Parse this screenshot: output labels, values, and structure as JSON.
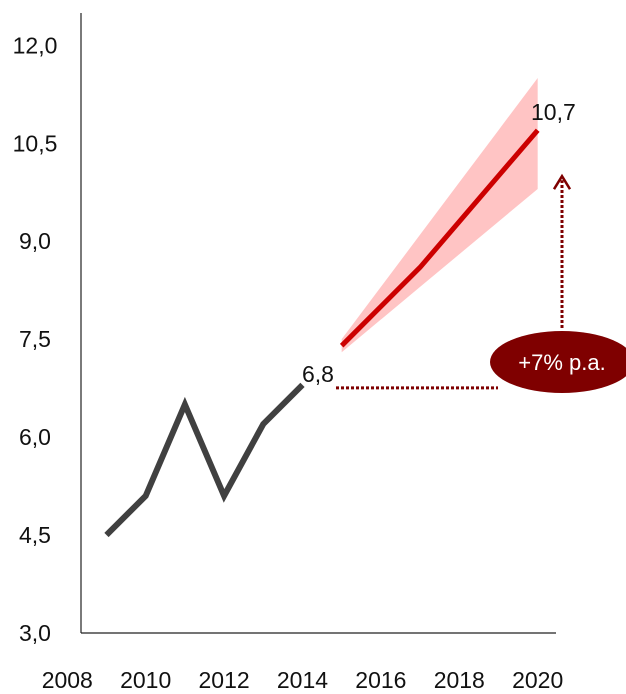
{
  "chart_data": {
    "type": "line",
    "title": "",
    "xlabel": "",
    "ylabel": "",
    "xlim": [
      2008,
      2020
    ],
    "ylim": [
      3.0,
      12.0
    ],
    "x_ticks": [
      "2008",
      "2010",
      "2012",
      "2014",
      "2016",
      "2018",
      "2020"
    ],
    "y_ticks": [
      "3,0",
      "4,5",
      "6,0",
      "7,5",
      "9,0",
      "10,5",
      "12,0"
    ],
    "grid": false,
    "legend": "none",
    "series": [
      {
        "kind": "historical",
        "color": "#404040",
        "x": [
          2009,
          2010,
          2011,
          2012,
          2013,
          2014
        ],
        "y": [
          4.5,
          5.1,
          6.5,
          5.1,
          6.2,
          6.8
        ]
      },
      {
        "kind": "forecast",
        "color": "#cc0000",
        "band_color": "#ffc4c4",
        "x": [
          2015,
          2016,
          2017,
          2018,
          2019,
          2020
        ],
        "y": [
          7.4,
          8.0,
          8.6,
          9.3,
          10.0,
          10.7
        ],
        "lower": [
          7.3,
          7.8,
          8.3,
          8.8,
          9.3,
          9.8
        ],
        "upper": [
          7.5,
          8.3,
          9.1,
          9.9,
          10.7,
          11.5
        ]
      }
    ],
    "annotations": {
      "start_label": "6,8",
      "end_label": "10,7",
      "growth_label": "+7% p.a.",
      "callout_color": "#7f0000"
    }
  }
}
